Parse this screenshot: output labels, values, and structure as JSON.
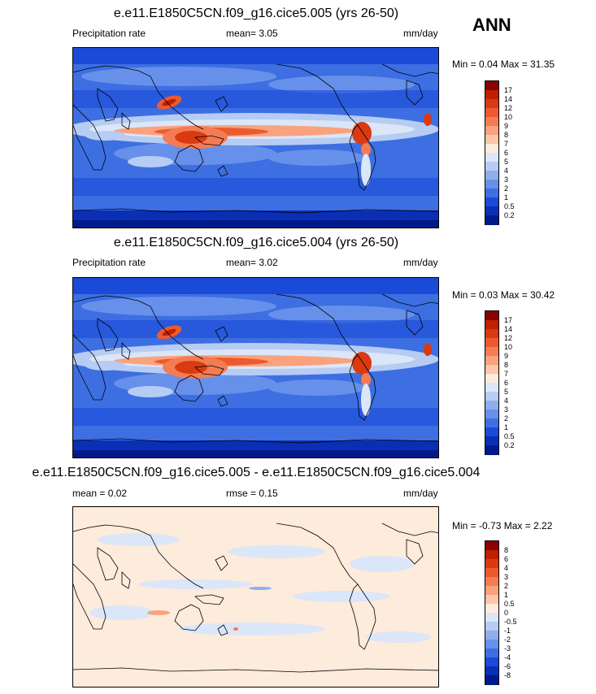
{
  "header": {
    "season": "ANN"
  },
  "panels": [
    {
      "title": "e.e11.E1850C5CN.f09_g16.cice5.005 (yrs 26-50)",
      "left_label": "Precipitation rate",
      "stat_text": "mean=   3.05",
      "units": "mm/day",
      "minmax_text": "Min =   0.04 Max =  31.35",
      "kind": "precip"
    },
    {
      "title": "e.e11.E1850C5CN.f09_g16.cice5.004 (yrs 26-50)",
      "left_label": "Precipitation rate",
      "stat_text": "mean=   3.02",
      "units": "mm/day",
      "minmax_text": "Min =  0.03 Max =  30.42",
      "kind": "precip"
    },
    {
      "title": "e.e11.E1850C5CN.f09_g16.cice5.005 - e.e11.E1850C5CN.f09_g16.cice5.004",
      "left_label": "mean =   0.02",
      "stat_text": "rmse =   0.15",
      "units": "mm/day",
      "minmax_text": "Min =  -0.73 Max =   2.22",
      "kind": "diff"
    }
  ],
  "colorbars": {
    "precip": {
      "labels": [
        "17",
        "14",
        "12",
        "10",
        "9",
        "8",
        "7",
        "6",
        "5",
        "4",
        "3",
        "2",
        "1",
        "0.5",
        "0.2"
      ],
      "colors": [
        "#8b0000",
        "#c02000",
        "#d93a12",
        "#ec5a2e",
        "#f47c52",
        "#f9a27d",
        "#fcc6a8",
        "#fdebdc",
        "#dbe6f8",
        "#b6ccf2",
        "#8eaeee",
        "#6690ea",
        "#3d6fe3",
        "#1a4ad7",
        "#0a2fb5",
        "#011a8a"
      ]
    },
    "diff": {
      "labels": [
        "8",
        "6",
        "4",
        "3",
        "2",
        "1",
        "0.5",
        "0",
        "-0.5",
        "-1",
        "-2",
        "-3",
        "-4",
        "-6",
        "-8"
      ],
      "colors": [
        "#8b0000",
        "#c02000",
        "#d93a12",
        "#ec5a2e",
        "#f47c52",
        "#f9a27d",
        "#fcc6a8",
        "#fdebdc",
        "#dbe6f8",
        "#b6ccf2",
        "#8eaeee",
        "#6690ea",
        "#3d6fe3",
        "#1a4ad7",
        "#0a2fb5",
        "#011a8a"
      ]
    }
  }
}
